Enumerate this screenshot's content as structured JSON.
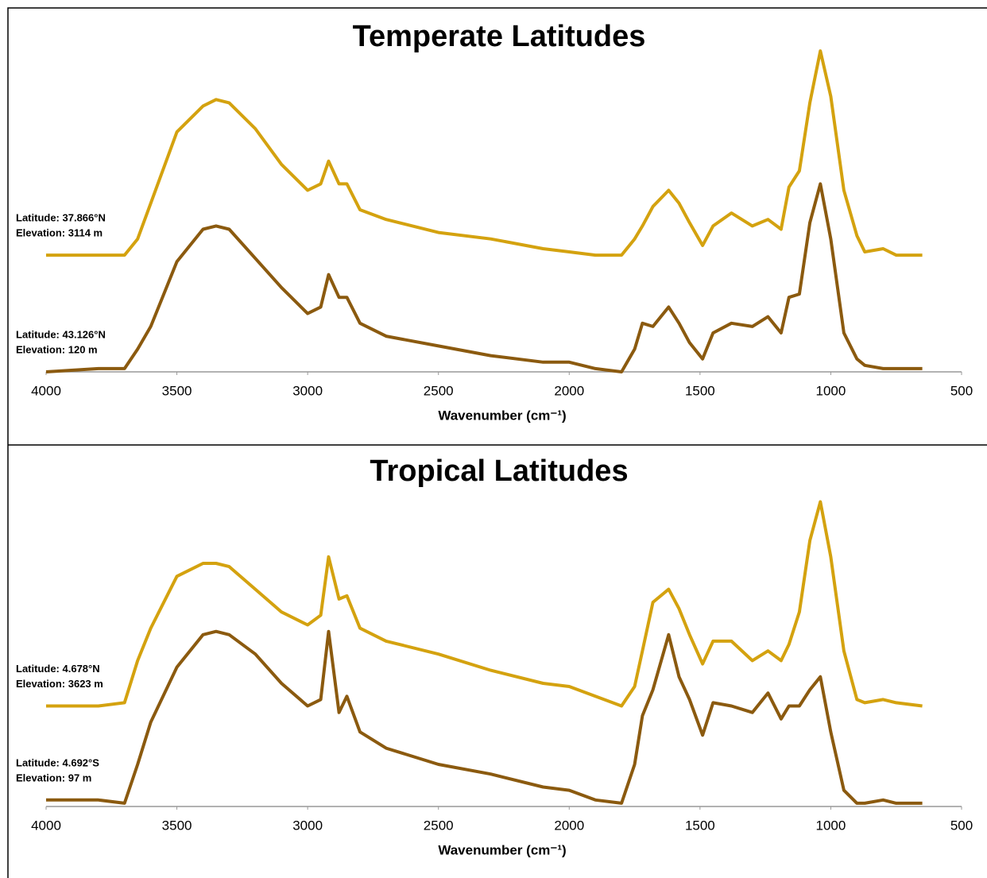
{
  "chart_data": [
    {
      "type": "line",
      "title": "Temperate Latitudes",
      "x_label": "Wavenumber (cm⁻¹)",
      "x": [
        4000,
        3800,
        3700,
        3650,
        3600,
        3500,
        3400,
        3350,
        3300,
        3200,
        3100,
        3000,
        2950,
        2920,
        2880,
        2850,
        2800,
        2700,
        2500,
        2300,
        2100,
        2000,
        1900,
        1800,
        1750,
        1720,
        1680,
        1620,
        1580,
        1540,
        1490,
        1450,
        1380,
        1300,
        1240,
        1190,
        1160,
        1120,
        1080,
        1040,
        1000,
        950,
        900,
        870,
        800,
        750,
        650
      ],
      "xlim": [
        4000,
        500
      ],
      "xticks": [
        4000,
        3500,
        3000,
        2500,
        2000,
        1500,
        1000,
        500
      ],
      "ylim": [
        0,
        1
      ],
      "series": [
        {
          "name": "Latitude: 37.866°N",
          "elevation": "Elevation: 3114 m",
          "color": "#d4a20f",
          "values": [
            0.36,
            0.36,
            0.36,
            0.41,
            0.52,
            0.74,
            0.82,
            0.84,
            0.83,
            0.75,
            0.64,
            0.56,
            0.58,
            0.65,
            0.58,
            0.58,
            0.5,
            0.47,
            0.43,
            0.41,
            0.38,
            0.37,
            0.36,
            0.36,
            0.41,
            0.45,
            0.51,
            0.56,
            0.52,
            0.46,
            0.39,
            0.45,
            0.49,
            0.45,
            0.47,
            0.44,
            0.57,
            0.62,
            0.83,
            0.99,
            0.85,
            0.56,
            0.42,
            0.37,
            0.38,
            0.36,
            0.36
          ]
        },
        {
          "name": "Latitude: 43.126°N",
          "elevation": "Elevation: 120 m",
          "color": "#8b5a0f",
          "values": [
            0.0,
            0.01,
            0.01,
            0.07,
            0.14,
            0.34,
            0.44,
            0.45,
            0.44,
            0.35,
            0.26,
            0.18,
            0.2,
            0.3,
            0.23,
            0.23,
            0.15,
            0.11,
            0.08,
            0.05,
            0.03,
            0.03,
            0.01,
            0.0,
            0.07,
            0.15,
            0.14,
            0.2,
            0.15,
            0.09,
            0.04,
            0.12,
            0.15,
            0.14,
            0.17,
            0.12,
            0.23,
            0.24,
            0.46,
            0.58,
            0.41,
            0.12,
            0.04,
            0.02,
            0.01,
            0.01,
            0.01
          ]
        }
      ]
    },
    {
      "type": "line",
      "title": "Tropical Latitudes",
      "x_label": "Wavenumber (cm⁻¹)",
      "x": [
        4000,
        3800,
        3700,
        3650,
        3600,
        3500,
        3400,
        3350,
        3300,
        3200,
        3100,
        3000,
        2950,
        2920,
        2880,
        2850,
        2800,
        2700,
        2500,
        2300,
        2100,
        2000,
        1900,
        1800,
        1750,
        1720,
        1680,
        1620,
        1580,
        1540,
        1490,
        1450,
        1380,
        1300,
        1240,
        1190,
        1160,
        1120,
        1080,
        1040,
        1000,
        950,
        900,
        870,
        800,
        750,
        650
      ],
      "xlim": [
        4000,
        500
      ],
      "xticks": [
        4000,
        3500,
        3000,
        2500,
        2000,
        1500,
        1000,
        500
      ],
      "ylim": [
        0,
        1
      ],
      "series": [
        {
          "name": "Latitude: 4.678°N",
          "elevation": "Elevation: 3623 m",
          "color": "#d4a20f",
          "values": [
            0.31,
            0.31,
            0.32,
            0.45,
            0.55,
            0.71,
            0.75,
            0.75,
            0.74,
            0.67,
            0.6,
            0.56,
            0.59,
            0.77,
            0.64,
            0.65,
            0.55,
            0.51,
            0.47,
            0.42,
            0.38,
            0.37,
            0.34,
            0.31,
            0.37,
            0.48,
            0.63,
            0.67,
            0.61,
            0.53,
            0.44,
            0.51,
            0.51,
            0.45,
            0.48,
            0.45,
            0.5,
            0.6,
            0.82,
            0.94,
            0.77,
            0.48,
            0.33,
            0.32,
            0.33,
            0.32,
            0.31
          ]
        },
        {
          "name": "Latitude: 4.692°S",
          "elevation": "Elevation: 97 m",
          "color": "#8b5a0f",
          "values": [
            0.02,
            0.02,
            0.01,
            0.13,
            0.26,
            0.43,
            0.53,
            0.54,
            0.53,
            0.47,
            0.38,
            0.31,
            0.33,
            0.54,
            0.29,
            0.34,
            0.23,
            0.18,
            0.13,
            0.1,
            0.06,
            0.05,
            0.02,
            0.01,
            0.13,
            0.28,
            0.36,
            0.53,
            0.4,
            0.33,
            0.22,
            0.32,
            0.31,
            0.29,
            0.35,
            0.27,
            0.31,
            0.31,
            0.36,
            0.4,
            0.23,
            0.05,
            0.01,
            0.01,
            0.02,
            0.01,
            0.01
          ]
        }
      ]
    }
  ]
}
